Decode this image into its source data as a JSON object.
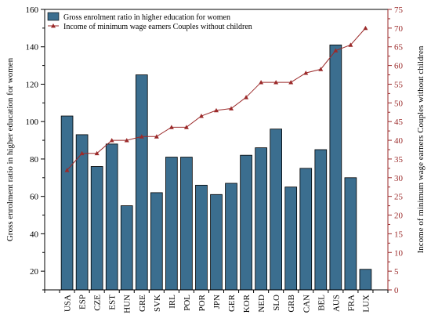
{
  "chart_data": {
    "type": "bar",
    "categories": [
      "USA",
      "ESP",
      "CZE",
      "EST",
      "HUN",
      "GRE",
      "SVK",
      "IRL",
      "POL",
      "POR",
      "JPN",
      "GER",
      "KOR",
      "NED",
      "SLO",
      "GRB",
      "CAN",
      "BEL",
      "AUS",
      "FRA",
      "LUX"
    ],
    "series": [
      {
        "name": "Gross enrolment ratio in higher education for women",
        "type": "bar",
        "axis": "left",
        "color": "#3b6e8f",
        "values": [
          103,
          93,
          76,
          88,
          55,
          125,
          62,
          81,
          81,
          66,
          61,
          67,
          82,
          86,
          96,
          65,
          75,
          85,
          141,
          70,
          21
        ]
      },
      {
        "name": "Income of minimum wage earners Couples without children",
        "type": "line",
        "axis": "right",
        "color": "#9b2a2a",
        "marker": "triangle",
        "values": [
          32,
          36.5,
          36.5,
          40,
          40,
          41,
          41,
          43.5,
          43.5,
          46.5,
          48,
          48.5,
          51.5,
          55.5,
          55.5,
          55.5,
          58,
          59,
          64,
          65.5,
          70
        ]
      }
    ],
    "ylabel": "Gross enrolment ratio in higher education for women",
    "ylabel_right": "Income of minimum wage earners Couples without children",
    "ylim": [
      10,
      160
    ],
    "yticks": [
      20,
      40,
      60,
      80,
      100,
      120,
      140,
      160
    ],
    "ylim_right": [
      0,
      75
    ],
    "yticks_right": [
      0,
      5,
      10,
      15,
      20,
      25,
      30,
      35,
      40,
      45,
      50,
      55,
      60,
      65,
      70,
      75
    ],
    "legend_position": "top-left",
    "grid": false
  }
}
